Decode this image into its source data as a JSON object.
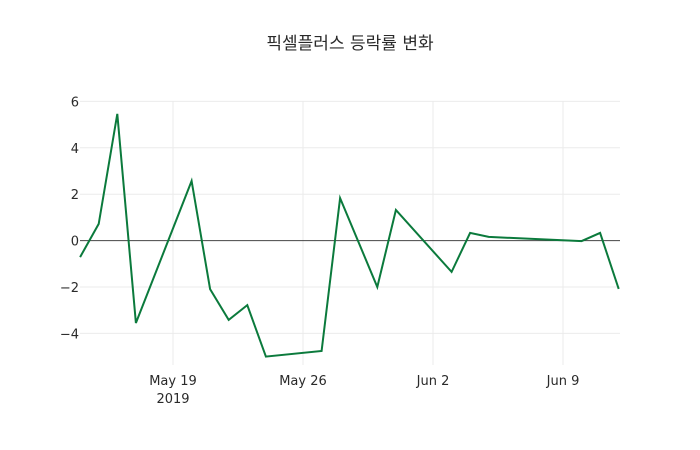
{
  "chart_data": {
    "type": "line",
    "title": "픽셀플러스 등락률 변화",
    "xlabel": "",
    "ylabel": "",
    "x": [
      "2019-05-14",
      "2019-05-15",
      "2019-05-16",
      "2019-05-17",
      "2019-05-20",
      "2019-05-21",
      "2019-05-22",
      "2019-05-23",
      "2019-05-24",
      "2019-05-27",
      "2019-05-28",
      "2019-05-30",
      "2019-05-31",
      "2019-06-03",
      "2019-06-04",
      "2019-06-05",
      "2019-06-10",
      "2019-06-11",
      "2019-06-12"
    ],
    "series": [
      {
        "name": "등락률",
        "color": "#0b7a3c",
        "values": [
          -0.71,
          0.72,
          5.46,
          -3.55,
          2.57,
          -2.09,
          -3.42,
          -2.78,
          -5.0,
          -4.76,
          1.83,
          -2.0,
          1.32,
          -1.35,
          0.33,
          0.16,
          -0.02,
          0.33,
          -2.08
        ]
      }
    ],
    "ylim": [
      -5.3,
      6.2
    ],
    "yticks": [
      6,
      4,
      2,
      0,
      -2,
      -4
    ],
    "ytick_labels": [
      "6",
      "4",
      "2",
      "0",
      "−2",
      "−4"
    ],
    "xticks": [
      "2019-05-19",
      "2019-05-26",
      "2019-06-02",
      "2019-06-09"
    ],
    "xtick_labels": [
      "May 19",
      "May 26",
      "Jun 2",
      "Jun 9"
    ],
    "xtick_sublabel": "2019",
    "grid": true,
    "zeroline": true,
    "legend": "none"
  }
}
